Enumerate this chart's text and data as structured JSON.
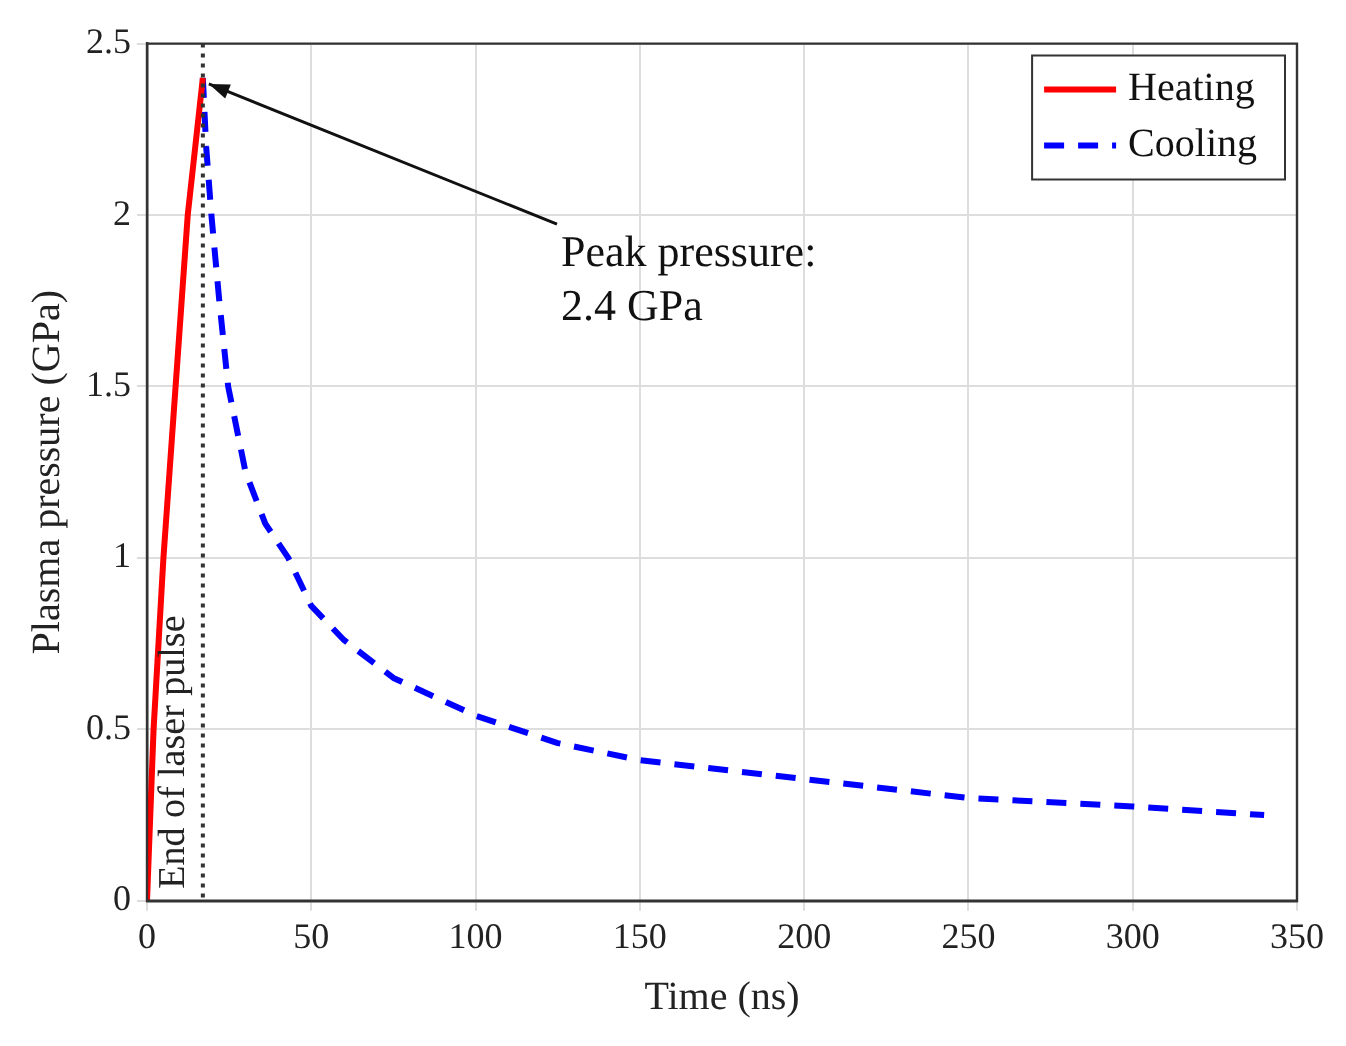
{
  "chart_data": {
    "type": "line",
    "xlabel": "Time (ns)",
    "ylabel": "Plasma pressure (GPa)",
    "xlim": [
      0,
      350
    ],
    "xticks": [
      0,
      50,
      100,
      150,
      200,
      250,
      300,
      350
    ],
    "ylim": [
      0,
      2.5
    ],
    "yticks": [
      0,
      0.5,
      1,
      1.5,
      2,
      2.5
    ],
    "grid": true,
    "legend": "top right",
    "marker": "none",
    "series": [
      {
        "name": "Heating",
        "color": "#ff0000",
        "line_style": "solid",
        "x": [
          0,
          2,
          5,
          8.7,
          12.4,
          17
        ],
        "values": [
          0,
          0.5,
          1.0,
          1.5,
          2.0,
          2.4
        ]
      },
      {
        "name": "Cooling",
        "color": "#0000ff",
        "line_style": "dashed",
        "x": [
          17,
          18,
          19.6,
          22,
          24.7,
          30,
          36,
          43,
          50,
          60,
          75,
          100,
          125,
          150,
          200,
          250,
          300,
          340
        ],
        "values": [
          2.4,
          2.2,
          2.0,
          1.75,
          1.5,
          1.25,
          1.1,
          1.0,
          0.86,
          0.76,
          0.65,
          0.54,
          0.46,
          0.41,
          0.355,
          0.3,
          0.275,
          0.25
        ]
      }
    ],
    "ref_lines": [
      {
        "axis": "x",
        "value": 17,
        "label": "End of laser pulse",
        "color": "#333333",
        "line_style": "dotted"
      }
    ],
    "annotations": [
      {
        "text": "Peak pressure:\n2.4 GPa",
        "x": 17,
        "y": 2.4
      }
    ]
  }
}
